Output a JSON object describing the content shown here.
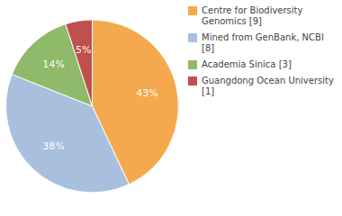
{
  "chart_data": {
    "type": "pie",
    "categories": [
      "Centre for Biodiversity\nGenomics [9]",
      "Mined from GenBank, NCBI [8]",
      "Academia Sinica [3]",
      "Guangdong Ocean University [1]"
    ],
    "values": [
      43,
      38,
      14,
      5
    ],
    "value_labels": [
      "43%",
      "38%",
      "14%",
      "5%"
    ],
    "colors": [
      "#f5a94e",
      "#a8c0dd",
      "#8fba6a",
      "#c0504d"
    ],
    "data_labels": true,
    "legend": "right"
  }
}
